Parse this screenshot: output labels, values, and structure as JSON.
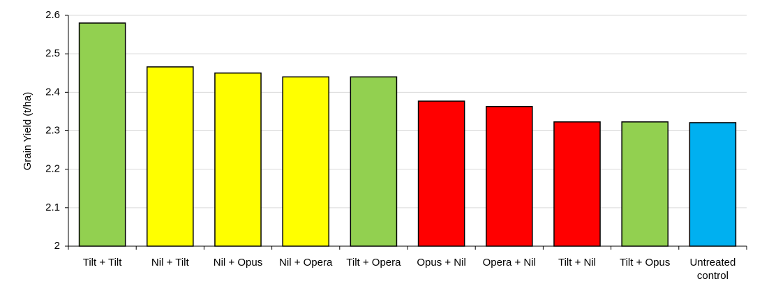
{
  "chart_data": {
    "type": "bar",
    "y_label": "Grain Yield (t/ha)",
    "categories": [
      "Tilt + Tilt",
      "Nil + Tilt",
      "Nil + Opus",
      "Nil + Opera",
      "Tilt + Opera",
      "Opus + Nil",
      "Opera + Nil",
      "Tilt + Nil",
      "Tilt + Opus",
      "Untreated control"
    ],
    "values": [
      2.58,
      2.466,
      2.45,
      2.44,
      2.44,
      2.377,
      2.363,
      2.323,
      2.323,
      2.321
    ],
    "colors": [
      "#92d050",
      "#ffff00",
      "#ffff00",
      "#ffff00",
      "#92d050",
      "#ff0000",
      "#ff0000",
      "#ff0000",
      "#92d050",
      "#00b0f0"
    ],
    "ylim": [
      2,
      2.6
    ],
    "yticks": [
      2,
      2.1,
      2.2,
      2.3,
      2.4,
      2.5,
      2.6
    ],
    "grid": true
  }
}
